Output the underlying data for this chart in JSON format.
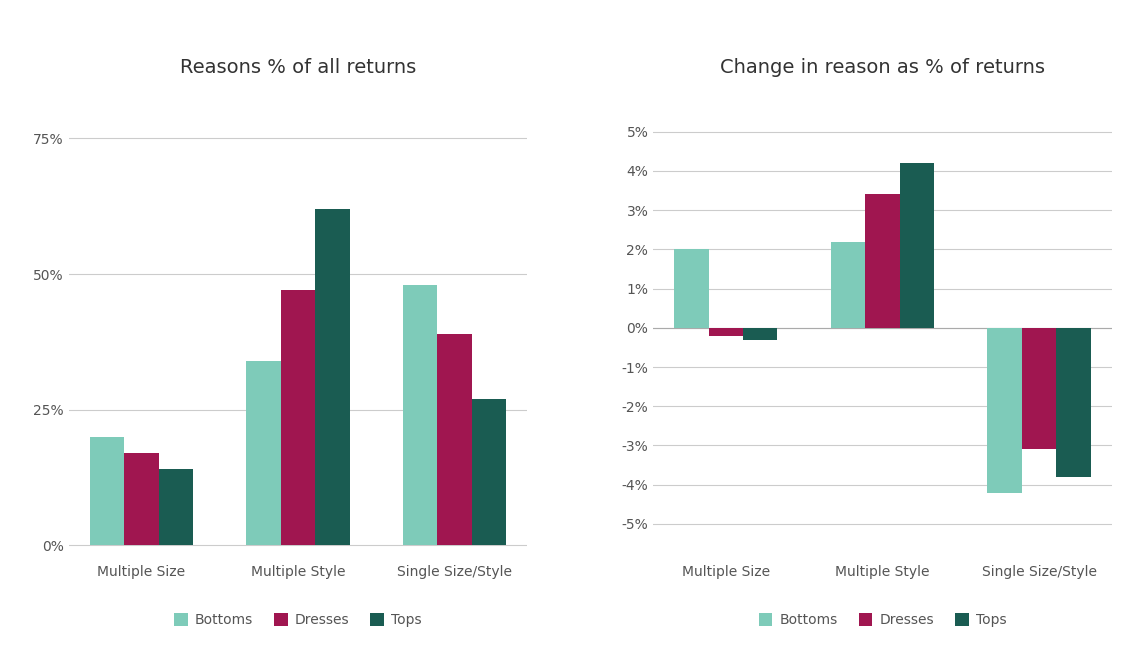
{
  "left_title": "Reasons % of all returns",
  "right_title": "Change in reason as % of returns",
  "categories": [
    "Multiple Size",
    "Multiple Style",
    "Single Size/Style"
  ],
  "legend_labels": [
    "Bottoms",
    "Dresses",
    "Tops"
  ],
  "bar_colors": [
    "#7ecbb9",
    "#a01650",
    "#1a5c52"
  ],
  "left_data": {
    "Bottoms": [
      0.2,
      0.34,
      0.48
    ],
    "Dresses": [
      0.17,
      0.47,
      0.39
    ],
    "Tops": [
      0.14,
      0.62,
      0.27
    ]
  },
  "right_data": {
    "Bottoms": [
      0.02,
      0.022,
      -0.042
    ],
    "Dresses": [
      -0.002,
      0.034,
      -0.031
    ],
    "Tops": [
      -0.003,
      0.042,
      -0.038
    ]
  },
  "left_yticks": [
    0,
    0.25,
    0.5,
    0.75
  ],
  "left_ylim": [
    -0.018,
    0.82
  ],
  "right_yticks": [
    -0.05,
    -0.04,
    -0.03,
    -0.02,
    -0.01,
    0.0,
    0.01,
    0.02,
    0.03,
    0.04,
    0.05
  ],
  "right_ylim": [
    -0.058,
    0.058
  ],
  "background_color": "#ffffff",
  "bar_width": 0.22,
  "title_fontsize": 14
}
